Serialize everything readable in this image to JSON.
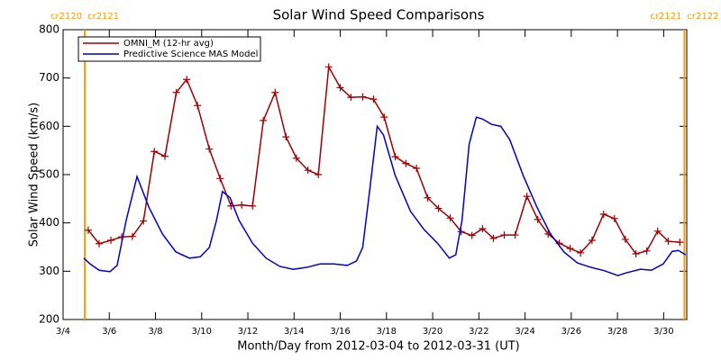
{
  "chart_data": {
    "type": "line",
    "title": "Solar Wind Speed Comparisons",
    "x_label": "Month/Day from 2012-03-04 to 2012-03-31 (UT)",
    "y_label": "Solar Wind Speed (km/s)",
    "xlim": [
      0,
      27
    ],
    "ylim": [
      200,
      800
    ],
    "xticks": [
      {
        "value": 0,
        "label": "3/4"
      },
      {
        "value": 2,
        "label": "3/6"
      },
      {
        "value": 4,
        "label": "3/8"
      },
      {
        "value": 6,
        "label": "3/10"
      },
      {
        "value": 8,
        "label": "3/12"
      },
      {
        "value": 10,
        "label": "3/14"
      },
      {
        "value": 12,
        "label": "3/16"
      },
      {
        "value": 14,
        "label": "3/18"
      },
      {
        "value": 16,
        "label": "3/20"
      },
      {
        "value": 18,
        "label": "3/22"
      },
      {
        "value": 20,
        "label": "3/24"
      },
      {
        "value": 22,
        "label": "3/26"
      },
      {
        "value": 24,
        "label": "3/28"
      },
      {
        "value": 26,
        "label": "3/30"
      }
    ],
    "yticks": [
      200,
      300,
      400,
      500,
      600,
      700,
      800
    ],
    "legend": "top-left",
    "boundaries": [
      {
        "x": 0.94,
        "labels": [
          "cr2120",
          "cr2121"
        ],
        "color": "#ff9900"
      },
      {
        "x": 26.9,
        "labels": [
          "cr2121",
          "cr2122"
        ],
        "color": "#ff9900"
      }
    ],
    "series": [
      {
        "name": "OMNI_M (12-hr avg)",
        "color": "#a00000",
        "marker": "+",
        "x": [
          1.09,
          1.56,
          2.07,
          2.54,
          3.0,
          3.48,
          3.95,
          4.41,
          4.9,
          5.35,
          5.82,
          6.33,
          6.8,
          7.27,
          7.73,
          8.2,
          8.67,
          9.18,
          9.65,
          10.1,
          10.6,
          11.05,
          11.5,
          12.0,
          12.46,
          12.97,
          13.44,
          13.9,
          14.38,
          14.84,
          15.3,
          15.78,
          16.25,
          16.76,
          17.23,
          17.7,
          18.16,
          18.63,
          19.1,
          19.57,
          20.08,
          20.55,
          21.0,
          21.48,
          21.95,
          22.4,
          22.9,
          23.4,
          23.87,
          24.34,
          24.8,
          25.27,
          25.74,
          26.2,
          26.7
        ],
        "values": [
          385,
          357,
          364,
          371,
          372,
          404,
          548,
          538,
          670,
          697,
          643,
          553,
          492,
          435,
          437,
          435,
          612,
          670,
          578,
          534,
          509,
          500,
          723,
          680,
          660,
          661,
          656,
          619,
          537,
          523,
          513,
          452,
          430,
          410,
          382,
          374,
          388,
          368,
          375,
          375,
          455,
          407,
          377,
          358,
          347,
          338,
          364,
          418,
          409,
          366,
          336,
          342,
          383,
          362,
          360
        ]
      },
      {
        "name": "Predictive Science MAS Model",
        "color": "#0000cc",
        "x": [
          0.9,
          1.17,
          1.56,
          2.03,
          2.34,
          2.73,
          3.2,
          3.71,
          4.3,
          4.88,
          5.47,
          5.94,
          6.33,
          6.64,
          6.9,
          7.23,
          7.62,
          8.2,
          8.79,
          9.38,
          9.96,
          10.55,
          11.13,
          11.72,
          12.3,
          12.7,
          12.97,
          13.28,
          13.6,
          13.87,
          14.38,
          15.04,
          15.63,
          16.21,
          16.72,
          17.0,
          17.27,
          17.58,
          17.89,
          18.16,
          18.55,
          18.95,
          19.34,
          19.92,
          20.51,
          21.1,
          21.68,
          22.27,
          22.85,
          23.44,
          24.02,
          24.41,
          25.0,
          25.47,
          25.98,
          26.37,
          26.64,
          26.95
        ],
        "values": [
          327,
          315,
          302,
          299,
          312,
          405,
          496,
          433,
          377,
          340,
          327,
          330,
          349,
          405,
          465,
          452,
          405,
          358,
          327,
          310,
          304,
          308,
          315,
          315,
          312,
          321,
          349,
          470,
          600,
          582,
          498,
          424,
          386,
          358,
          327,
          334,
          405,
          563,
          619,
          615,
          604,
          600,
          572,
          498,
          433,
          377,
          340,
          317,
          308,
          301,
          291,
          297,
          304,
          302,
          315,
          341,
          343,
          334
        ]
      }
    ]
  }
}
